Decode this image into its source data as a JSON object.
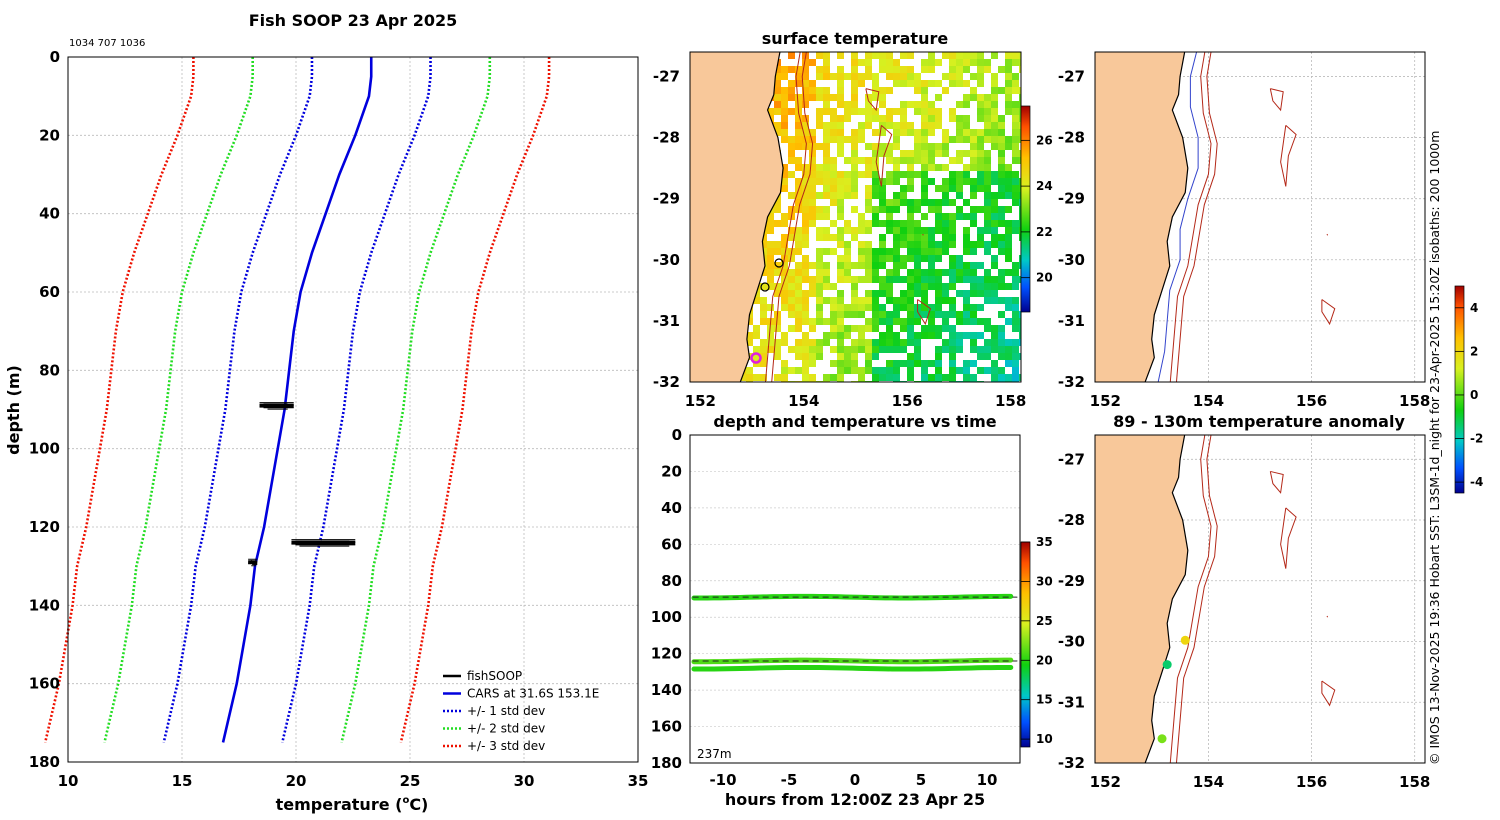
{
  "title": "Fish SOOP 23 Apr 2025",
  "ids": "1034 707 1036",
  "colors": {
    "cars": "#0000dd",
    "std1": "#0000dd",
    "std2": "#22dd22",
    "std3": "#ee1100",
    "fish": "#000000",
    "land": "#f8c89a",
    "iso200": "#3344cc",
    "iso1000": "#b42818"
  },
  "chart_data": [
    {
      "type": "line",
      "name": "profile",
      "xlabel": "temperature (",
      "xlabel_sup": "o",
      "xlabel_unit": "C)",
      "ylabel": "depth (m)",
      "xlim": [
        10,
        35
      ],
      "ylim": [
        0,
        180
      ],
      "xticks": [
        "10",
        "15",
        "20",
        "25",
        "30",
        "35"
      ],
      "yticks": [
        "0",
        "20",
        "40",
        "60",
        "80",
        "100",
        "120",
        "140",
        "160",
        "180"
      ],
      "grid": true,
      "legend_position": "bottom-right",
      "legend": [
        "fishSOOP",
        "CARS at 31.6S 153.1E",
        "+/- 1 std dev",
        "+/- 2 std dev",
        "+/- 3 std dev"
      ],
      "depth": [
        0,
        5,
        10,
        20,
        30,
        40,
        50,
        60,
        70,
        80,
        90,
        100,
        110,
        120,
        130,
        140,
        150,
        160,
        170,
        175
      ],
      "cars": [
        23.3,
        23.3,
        23.2,
        22.6,
        21.9,
        21.3,
        20.7,
        20.2,
        19.9,
        19.7,
        19.5,
        19.2,
        18.9,
        18.6,
        18.2,
        18.0,
        17.7,
        17.4,
        17.0,
        16.8
      ],
      "std_offsets": [
        2.6,
        5.2,
        7.8
      ],
      "fishsoop": [
        {
          "depth": 89,
          "t0": 18.4,
          "t1": 19.9
        },
        {
          "depth": 124,
          "t0": 19.8,
          "t1": 22.6
        },
        {
          "depth": 129,
          "t0": 17.9,
          "t1": 18.3
        }
      ]
    },
    {
      "type": "heatmap",
      "name": "surface_temperature",
      "title": "surface temperature",
      "xticks": [
        "152",
        "154",
        "156",
        "158"
      ],
      "yticks": [
        "-27",
        "-28",
        "-29",
        "-30",
        "-31",
        "-32"
      ],
      "colorbar": {
        "ticks": [
          "20",
          "22",
          "24",
          "26"
        ],
        "range": [
          18.5,
          27.5
        ]
      }
    },
    {
      "type": "scatter",
      "name": "depth_temp_time",
      "title": "depth and temperature vs time",
      "xlabel": "hours from 12:00Z 23 Apr 25",
      "xticks": [
        "-10",
        "-5",
        "0",
        "5",
        "10"
      ],
      "yticks": [
        "0",
        "20",
        "40",
        "60",
        "80",
        "100",
        "120",
        "140",
        "160",
        "180"
      ],
      "xlim": [
        -12.5,
        12.5
      ],
      "ylim": [
        0,
        180
      ],
      "bottom_depth_label": "237m",
      "bands": [
        {
          "depth": 89,
          "temp": 20
        },
        {
          "depth": 124,
          "temp": 21
        },
        {
          "depth": 128,
          "temp": 20
        }
      ],
      "colorbar": {
        "ticks": [
          "10",
          "15",
          "20",
          "25",
          "30",
          "35"
        ],
        "range": [
          9,
          35
        ]
      }
    },
    {
      "type": "heatmap",
      "name": "isobath_map",
      "xticks": [
        "152",
        "154",
        "156",
        "158"
      ],
      "yticks": [
        "-27",
        "-28",
        "-29",
        "-30",
        "-31",
        "-32"
      ]
    },
    {
      "type": "scatter",
      "name": "temperature_anomaly",
      "title": "89 - 130m temperature anomaly",
      "xticks": [
        "152",
        "154",
        "156",
        "158"
      ],
      "yticks": [
        "-27",
        "-28",
        "-29",
        "-30",
        "-31",
        "-32"
      ],
      "points": [
        {
          "lon": 153.55,
          "lat": -29.98,
          "anom": 2.0
        },
        {
          "lon": 153.2,
          "lat": -30.38,
          "anom": -1.4
        },
        {
          "lon": 153.1,
          "lat": -31.6,
          "anom": 0.3
        }
      ],
      "colorbar": {
        "ticks": [
          "-4",
          "-2",
          "0",
          "2",
          "4"
        ],
        "range": [
          -4.5,
          5
        ]
      }
    }
  ],
  "side_text": "© IMOS 13-Nov-2025 19:36 Hobart SST: L3SM-1d_night for 23-Apr-2025 15:20Z isobaths: 200  1000m"
}
